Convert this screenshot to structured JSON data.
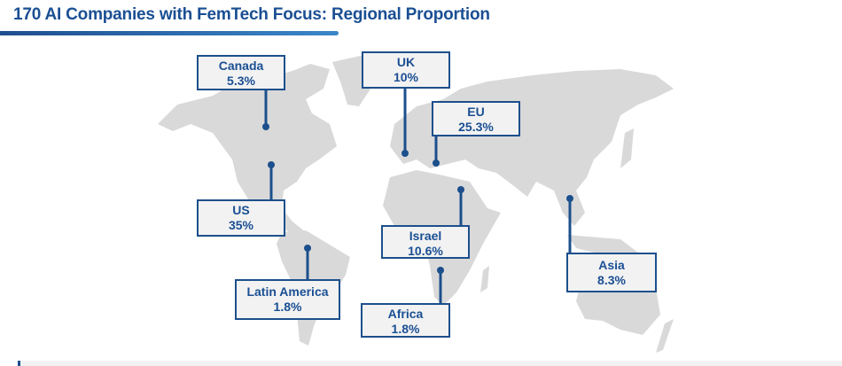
{
  "title": "170 AI Companies with FemTech Focus: Regional Proportion",
  "colors": {
    "accent": "#1c4f8c",
    "land": "#d9d9d9",
    "box_fill": "#f2f2f2"
  },
  "regions": [
    {
      "name": "Canada",
      "value": "5.3%"
    },
    {
      "name": "UK",
      "value": "10%"
    },
    {
      "name": "EU",
      "value": "25.3%"
    },
    {
      "name": "US",
      "value": "35%"
    },
    {
      "name": "Israel",
      "value": "10.6%"
    },
    {
      "name": "Latin America",
      "value": "1.8%"
    },
    {
      "name": "Africa",
      "value": "1.8%"
    },
    {
      "name": "Asia",
      "value": "8.3%"
    }
  ]
}
